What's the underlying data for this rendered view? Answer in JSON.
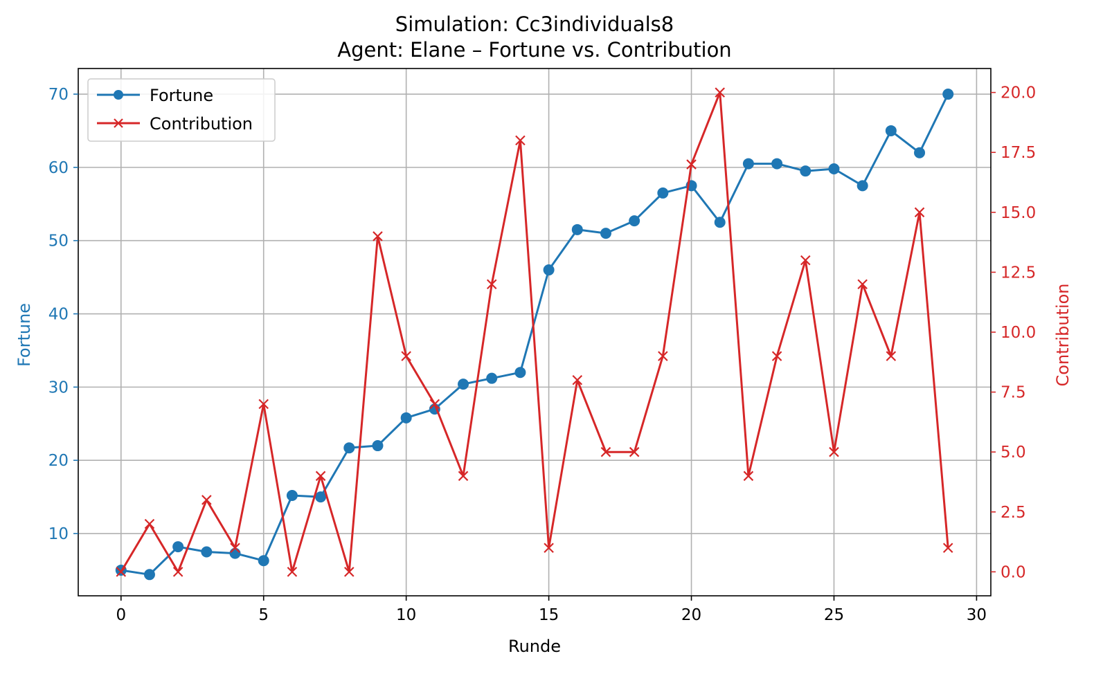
{
  "chart_data": {
    "type": "line",
    "title_line1": "Simulation: Cc3individuals8",
    "title_line2": "Agent: Elane – Fortune vs. Contribution",
    "xlabel": "Runde",
    "ylabel_left": "Fortune",
    "ylabel_right": "Contribution",
    "x": [
      0,
      1,
      2,
      3,
      4,
      5,
      6,
      7,
      8,
      9,
      10,
      11,
      12,
      13,
      14,
      15,
      16,
      17,
      18,
      19,
      20,
      21,
      22,
      23,
      24,
      25,
      26,
      27,
      28,
      29
    ],
    "xlim": [
      -1.5,
      30.5
    ],
    "ylim_left": [
      1.5,
      73.5
    ],
    "ylim_right": [
      -1,
      21
    ],
    "x_ticks": [
      0,
      5,
      10,
      15,
      20,
      25,
      30
    ],
    "y_ticks_left": [
      10,
      20,
      30,
      40,
      50,
      60,
      70
    ],
    "y_ticks_right": [
      "0.0",
      "2.5",
      "5.0",
      "7.5",
      "10.0",
      "12.5",
      "15.0",
      "17.5",
      "20.0"
    ],
    "grid": true,
    "legend_position": "top-left",
    "series": [
      {
        "name": "Fortune",
        "axis": "left",
        "color": "#1f77b4",
        "marker": "circle",
        "values": [
          5.0,
          4.4,
          8.2,
          7.5,
          7.3,
          6.3,
          15.2,
          15.0,
          21.7,
          22.0,
          25.8,
          27.0,
          30.4,
          31.2,
          32.0,
          46.0,
          51.5,
          51.0,
          52.7,
          56.5,
          57.5,
          52.5,
          60.5,
          60.5,
          59.5,
          59.8,
          57.5,
          65.0,
          62.0,
          70.0
        ]
      },
      {
        "name": "Contribution",
        "axis": "right",
        "color": "#d62728",
        "marker": "x",
        "values": [
          0,
          2,
          0,
          3,
          1,
          7,
          0,
          4,
          0,
          14,
          9,
          7,
          4,
          12,
          18,
          1,
          8,
          5,
          5,
          9,
          17,
          20,
          4,
          9,
          13,
          5,
          12,
          9,
          15,
          1
        ]
      }
    ]
  }
}
